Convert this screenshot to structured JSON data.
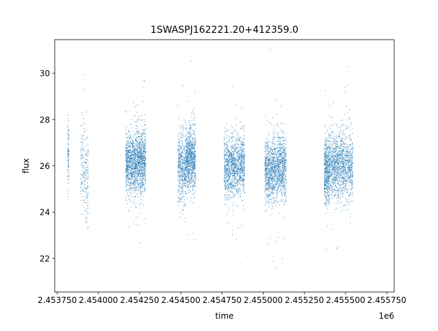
{
  "chart_data": {
    "type": "scatter",
    "title": "1SWASPJ162221.20+412359.0",
    "xlabel": "time",
    "ylabel": "flux",
    "x_offset_label": "1e6",
    "xlim": [
      2453735,
      2455795
    ],
    "ylim": [
      20.55,
      31.45
    ],
    "x_ticks": [
      2453750,
      2454000,
      2454250,
      2454500,
      2454750,
      2455000,
      2455250,
      2455500,
      2455750
    ],
    "x_tick_labels": [
      "2.453750",
      "2.454000",
      "2.454250",
      "2.454500",
      "2.454750",
      "2.455000",
      "2.455250",
      "2.455500",
      "2.455750"
    ],
    "y_ticks": [
      22,
      24,
      26,
      28,
      30
    ],
    "y_tick_labels": [
      "22",
      "24",
      "26",
      "28",
      "30"
    ],
    "grid": false,
    "legend": "none",
    "marker_color": "#1f77b4",
    "series": [
      {
        "segments": [
          {
            "x_start": 2453812,
            "x_end": 2453822,
            "y_center": 26.6,
            "y_spread": 1.2,
            "n": 90
          },
          {
            "x_start": 2453892,
            "x_end": 2453918,
            "y_center": 26.0,
            "y_spread": 1.4,
            "n": 120
          },
          {
            "x_start": 2453920,
            "x_end": 2453940,
            "y_center": 25.3,
            "y_spread": 1.5,
            "n": 110
          },
          {
            "x_start": 2454165,
            "x_end": 2454232,
            "y_center": 26.1,
            "y_spread": 1.1,
            "n": 900
          },
          {
            "x_start": 2454233,
            "x_end": 2454288,
            "y_center": 26.2,
            "y_spread": 1.15,
            "n": 800
          },
          {
            "x_start": 2454482,
            "x_end": 2454530,
            "y_center": 25.9,
            "y_spread": 1.2,
            "n": 500
          },
          {
            "x_start": 2454530,
            "x_end": 2454590,
            "y_center": 26.3,
            "y_spread": 1.05,
            "n": 900
          },
          {
            "x_start": 2454762,
            "x_end": 2454888,
            "y_center": 26.0,
            "y_spread": 1.05,
            "n": 1300
          },
          {
            "x_start": 2455010,
            "x_end": 2455060,
            "y_center": 25.8,
            "y_spread": 1.1,
            "n": 600
          },
          {
            "x_start": 2455060,
            "x_end": 2455140,
            "y_center": 25.9,
            "y_spread": 1.1,
            "n": 900
          },
          {
            "x_start": 2455370,
            "x_end": 2455400,
            "y_center": 25.8,
            "y_spread": 1.15,
            "n": 500
          },
          {
            "x_start": 2455400,
            "x_end": 2455545,
            "y_center": 26.0,
            "y_spread": 1.15,
            "n": 1400
          }
        ]
      }
    ]
  }
}
